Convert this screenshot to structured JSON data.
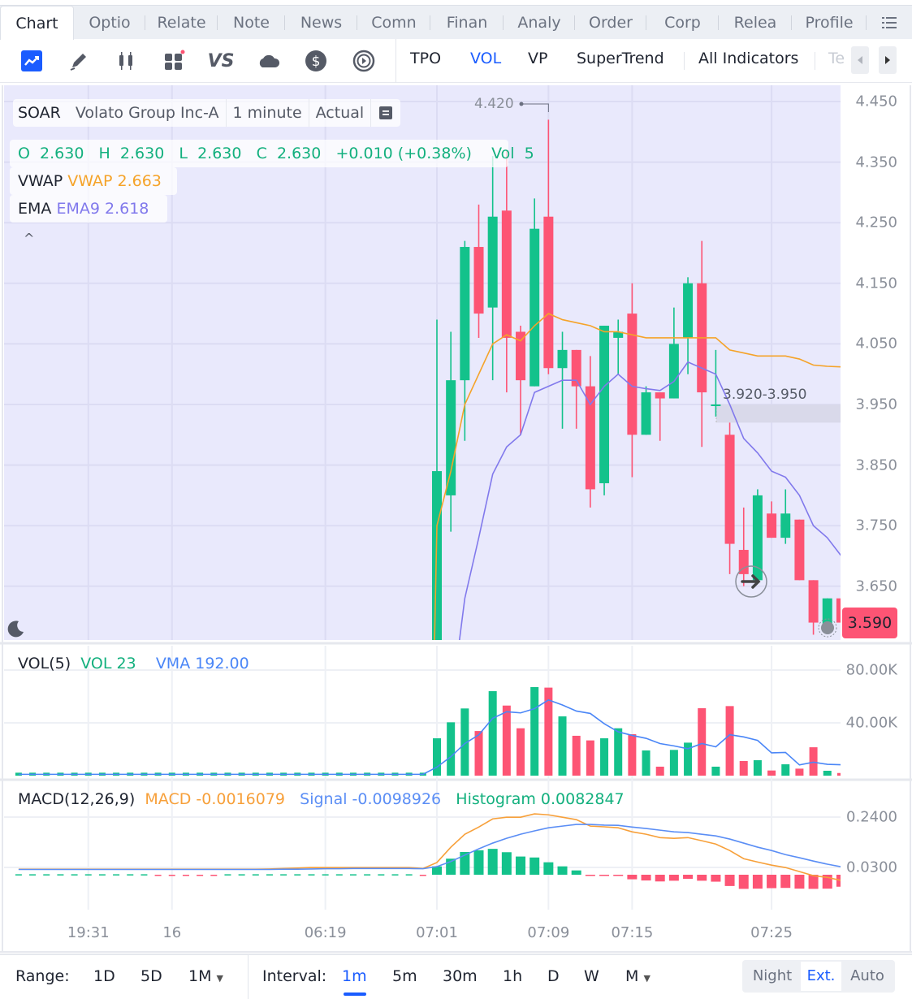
{
  "tabs": [
    {
      "label": "Chart",
      "active": true
    },
    {
      "label": "Optio"
    },
    {
      "label": "Relate"
    },
    {
      "label": "Note"
    },
    {
      "label": "News"
    },
    {
      "label": "Comn"
    },
    {
      "label": "Finan"
    },
    {
      "label": "Analy"
    },
    {
      "label": "Order"
    },
    {
      "label": "Corp"
    },
    {
      "label": "Relea"
    },
    {
      "label": "Profile"
    }
  ],
  "tab_menu_icon": "list-icon",
  "toolbar": {
    "icons": [
      "chart-type-icon",
      "draw-pencil-icon",
      "candlestick-icon",
      "widgets-icon",
      "compare-vs-icon",
      "cloud-icon",
      "dollar-icon",
      "replay-icon"
    ],
    "indicators": [
      {
        "label": "TPO"
      },
      {
        "label": "VOL",
        "active": true
      },
      {
        "label": "VP"
      },
      {
        "label": "SuperTrend"
      }
    ],
    "all_indicators": "All Indicators",
    "truncated": "Te",
    "accent": "#1a5cff"
  },
  "legend": {
    "symbol": "SOAR",
    "name": "Volato Group Inc-A",
    "interval": "1 minute",
    "mode": "Actual",
    "ohlc": "O  2.630   H  2.630   L  2.630   C  2.630   +0.010 (+0.38%)    Vol  5",
    "vwap_label": "VWAP",
    "vwap_value": "VWAP 2.663",
    "ema_label": "EMA",
    "ema_value": "EMA9 2.618",
    "collapse": "^"
  },
  "high_marker": "4.420",
  "zone_label": "3.920-3.950",
  "last_price": "3.590",
  "price_axis": [
    "4.450",
    "4.350",
    "4.250",
    "4.150",
    "4.050",
    "3.950",
    "3.850",
    "3.750",
    "3.650"
  ],
  "volume_pane": {
    "title": "VOL(5)",
    "vol": "VOL 23",
    "vma": "VMA 192.00",
    "axis": [
      "80.00K",
      "40.00K"
    ]
  },
  "macd_pane": {
    "title": "MACD(12,26,9)",
    "macd": "MACD -0.0016079",
    "signal": "Signal -0.0098926",
    "histogram": "Histogram 0.0082847",
    "axis": [
      "0.2400",
      "0.0300"
    ]
  },
  "x_labels": [
    {
      "index": 5,
      "label": "19:31"
    },
    {
      "index": 11,
      "label": "16"
    },
    {
      "index": 22,
      "label": "06:19"
    },
    {
      "index": 30,
      "label": "07:01"
    },
    {
      "index": 38,
      "label": "07:09"
    },
    {
      "index": 44,
      "label": "07:15"
    },
    {
      "index": 54,
      "label": "07:25"
    }
  ],
  "colors": {
    "up": "#13c28b",
    "down": "#fd5474",
    "vwap": "#f5a329",
    "ema": "#8179ec",
    "vma": "#4a86f7",
    "macd": "#f7a03a",
    "signal": "#5b8ef5",
    "chart_bg": "#e9e9fc"
  },
  "chart_data": {
    "type": "candlestick",
    "ylim": [
      3.561,
      4.47
    ],
    "candles_ohlc": [
      [
        2.63,
        2.63,
        2.63,
        2.63
      ],
      [
        2.63,
        2.63,
        2.63,
        2.63
      ],
      [
        2.63,
        2.63,
        2.63,
        2.63
      ],
      [
        2.63,
        2.63,
        2.63,
        2.63
      ],
      [
        2.63,
        2.63,
        2.63,
        2.63
      ],
      [
        2.63,
        2.63,
        2.63,
        2.63
      ],
      [
        2.63,
        2.63,
        2.63,
        2.63
      ],
      [
        2.63,
        2.63,
        2.63,
        2.63
      ],
      [
        2.63,
        2.63,
        2.63,
        2.63
      ],
      [
        2.63,
        2.63,
        2.63,
        2.63
      ],
      [
        2.63,
        2.63,
        2.63,
        2.63
      ],
      [
        2.63,
        2.63,
        2.63,
        2.63
      ],
      [
        2.63,
        2.63,
        2.63,
        2.63
      ],
      [
        2.63,
        2.63,
        2.63,
        2.63
      ],
      [
        2.63,
        2.63,
        2.63,
        2.63
      ],
      [
        2.63,
        2.63,
        2.63,
        2.63
      ],
      [
        2.63,
        2.63,
        2.63,
        2.63
      ],
      [
        2.63,
        2.63,
        2.63,
        2.63
      ],
      [
        2.63,
        2.63,
        2.63,
        2.63
      ],
      [
        2.63,
        2.63,
        2.63,
        2.63
      ],
      [
        2.63,
        2.63,
        2.63,
        2.63
      ],
      [
        2.63,
        2.63,
        2.63,
        2.63
      ],
      [
        2.63,
        2.63,
        2.63,
        2.63
      ],
      [
        2.63,
        2.63,
        2.63,
        2.63
      ],
      [
        2.63,
        2.63,
        2.63,
        2.63
      ],
      [
        2.63,
        2.63,
        2.63,
        2.63
      ],
      [
        2.63,
        2.63,
        2.63,
        2.63
      ],
      [
        2.63,
        2.63,
        2.63,
        2.63
      ],
      [
        2.63,
        2.63,
        2.63,
        2.63
      ],
      [
        2.63,
        2.63,
        2.63,
        2.63
      ],
      [
        3.52,
        4.09,
        3.52,
        3.84
      ],
      [
        3.8,
        4.07,
        3.74,
        3.99
      ],
      [
        3.99,
        4.22,
        3.89,
        4.21
      ],
      [
        4.21,
        4.28,
        4.06,
        4.1
      ],
      [
        4.11,
        4.36,
        3.99,
        4.26
      ],
      [
        4.27,
        4.37,
        3.97,
        4.06
      ],
      [
        4.07,
        4.08,
        3.9,
        3.99
      ],
      [
        3.98,
        4.29,
        3.98,
        4.24
      ],
      [
        4.26,
        4.42,
        4.0,
        4.01
      ],
      [
        4.01,
        4.07,
        3.91,
        4.04
      ],
      [
        4.04,
        4.04,
        3.91,
        3.98
      ],
      [
        3.98,
        4.03,
        3.78,
        3.81
      ],
      [
        3.82,
        4.08,
        3.8,
        4.08
      ],
      [
        4.06,
        4.09,
        4.0,
        4.07
      ],
      [
        4.1,
        4.15,
        3.83,
        3.9
      ],
      [
        3.9,
        3.98,
        3.9,
        3.97
      ],
      [
        3.97,
        3.97,
        3.89,
        3.96
      ],
      [
        3.96,
        4.11,
        3.96,
        4.05
      ],
      [
        4.06,
        4.16,
        4.0,
        4.15
      ],
      [
        4.15,
        4.22,
        3.88,
        3.97
      ],
      [
        3.95,
        4.04,
        3.93,
        3.95
      ],
      [
        3.9,
        3.92,
        3.67,
        3.72
      ],
      [
        3.71,
        3.78,
        3.65,
        3.67
      ],
      [
        3.66,
        3.81,
        3.66,
        3.8
      ],
      [
        3.77,
        3.79,
        3.73,
        3.73
      ],
      [
        3.73,
        3.81,
        3.72,
        3.77
      ],
      [
        3.76,
        3.76,
        3.66,
        3.66
      ],
      [
        3.66,
        3.66,
        3.57,
        3.59
      ],
      [
        3.58,
        3.63,
        3.58,
        3.63
      ],
      [
        3.63,
        3.63,
        3.59,
        3.59
      ]
    ],
    "vwap": [
      2.63,
      2.63,
      2.63,
      2.63,
      2.63,
      2.63,
      2.63,
      2.63,
      2.63,
      2.63,
      2.63,
      2.63,
      2.63,
      2.63,
      2.63,
      2.63,
      2.63,
      2.63,
      2.63,
      2.63,
      2.63,
      2.63,
      2.63,
      2.63,
      2.63,
      2.63,
      2.63,
      2.63,
      2.63,
      2.63,
      3.75,
      3.84,
      3.95,
      4.0,
      4.05,
      4.065,
      4.055,
      4.08,
      4.1,
      4.09,
      4.085,
      4.08,
      4.07,
      4.07,
      4.065,
      4.06,
      4.06,
      4.06,
      4.06,
      4.06,
      4.06,
      4.04,
      4.035,
      4.03,
      4.03,
      4.03,
      4.025,
      4.015,
      4.013,
      4.012
    ],
    "ema9": [
      2.63,
      2.63,
      2.63,
      2.63,
      2.63,
      2.63,
      2.63,
      2.63,
      2.63,
      2.63,
      2.63,
      2.63,
      2.63,
      2.63,
      2.63,
      2.63,
      2.63,
      2.63,
      2.63,
      2.63,
      2.63,
      2.63,
      2.63,
      2.63,
      2.63,
      2.63,
      2.63,
      2.63,
      2.63,
      2.63,
      3.2,
      3.45,
      3.63,
      3.73,
      3.835,
      3.88,
      3.9,
      3.97,
      3.98,
      3.99,
      3.99,
      3.95,
      3.98,
      4.0,
      3.98,
      3.976,
      3.973,
      3.988,
      4.02,
      4.01,
      4.0,
      3.95,
      3.894,
      3.87,
      3.84,
      3.83,
      3.8,
      3.75,
      3.73,
      3.7
    ],
    "volume": [
      1000,
      1000,
      1000,
      1000,
      1000,
      1000,
      1000,
      1000,
      1000,
      1000,
      1000,
      1000,
      1000,
      1000,
      1000,
      1000,
      1000,
      1000,
      1000,
      1000,
      1000,
      1000,
      1000,
      1000,
      1000,
      1000,
      1000,
      1000,
      1000,
      1000,
      28300,
      40400,
      50900,
      33800,
      64000,
      53100,
      35900,
      67100,
      66700,
      44900,
      30200,
      26700,
      28300,
      35900,
      31400,
      19100,
      6800,
      19500,
      25000,
      51100,
      6800,
      52700,
      11100,
      11700,
      3900,
      8600,
      5300,
      21500,
      3700,
      2000
    ],
    "volume_ylim": [
      0,
      90000
    ],
    "macd": [
      0.023,
      0.023,
      0.023,
      0.023,
      0.023,
      0.023,
      0.023,
      0.023,
      0.023,
      0.023,
      0.023,
      0.023,
      0.023,
      0.023,
      0.023,
      0.023,
      0.023,
      0.023,
      0.024,
      0.026,
      0.028,
      0.03,
      0.03,
      0.03,
      0.03,
      0.03,
      0.03,
      0.03,
      0.03,
      0.026,
      0.051,
      0.115,
      0.169,
      0.199,
      0.233,
      0.24,
      0.24,
      0.254,
      0.25,
      0.24,
      0.23,
      0.203,
      0.2,
      0.196,
      0.179,
      0.169,
      0.155,
      0.152,
      0.155,
      0.142,
      0.128,
      0.101,
      0.067,
      0.053,
      0.04,
      0.03,
      0.013,
      -0.004,
      -0.011,
      -0.024
    ],
    "signal": [
      0.022,
      0.022,
      0.022,
      0.022,
      0.022,
      0.022,
      0.022,
      0.022,
      0.022,
      0.022,
      0.022,
      0.022,
      0.022,
      0.022,
      0.022,
      0.022,
      0.022,
      0.022,
      0.022,
      0.023,
      0.023,
      0.024,
      0.025,
      0.025,
      0.026,
      0.026,
      0.026,
      0.026,
      0.026,
      0.025,
      0.034,
      0.055,
      0.082,
      0.108,
      0.132,
      0.152,
      0.169,
      0.183,
      0.196,
      0.203,
      0.21,
      0.21,
      0.207,
      0.206,
      0.199,
      0.193,
      0.186,
      0.179,
      0.176,
      0.169,
      0.162,
      0.149,
      0.132,
      0.115,
      0.101,
      0.084,
      0.071,
      0.057,
      0.044,
      0.033
    ],
    "histogram": [
      0.002,
      0.002,
      0.002,
      0.002,
      0.002,
      0.002,
      0.002,
      0.002,
      0.002,
      0.002,
      -0.002,
      -0.002,
      -0.002,
      -0.002,
      -0.002,
      0.002,
      0.002,
      0.002,
      0.002,
      0.002,
      0.002,
      0.002,
      0.002,
      0.002,
      0.002,
      0.002,
      0.002,
      0.002,
      0.002,
      -0.002,
      0.035,
      0.067,
      0.095,
      0.102,
      0.108,
      0.094,
      0.076,
      0.072,
      0.052,
      0.035,
      0.018,
      -0.002,
      -0.002,
      -0.004,
      -0.019,
      -0.024,
      -0.028,
      -0.025,
      -0.017,
      -0.025,
      -0.029,
      -0.047,
      -0.059,
      -0.058,
      -0.056,
      -0.055,
      -0.058,
      -0.059,
      -0.058,
      -0.05
    ],
    "macd_ylim": [
      -0.08,
      0.3
    ]
  },
  "bottom": {
    "range_label": "Range:",
    "ranges": [
      "1D",
      "5D",
      "1M"
    ],
    "interval_label": "Interval:",
    "intervals": [
      "1m",
      "5m",
      "30m",
      "1h",
      "D",
      "W",
      "M"
    ],
    "active_interval": "1m",
    "sessions": [
      "Night",
      "Ext.",
      "Auto"
    ],
    "active_session": "Ext."
  }
}
